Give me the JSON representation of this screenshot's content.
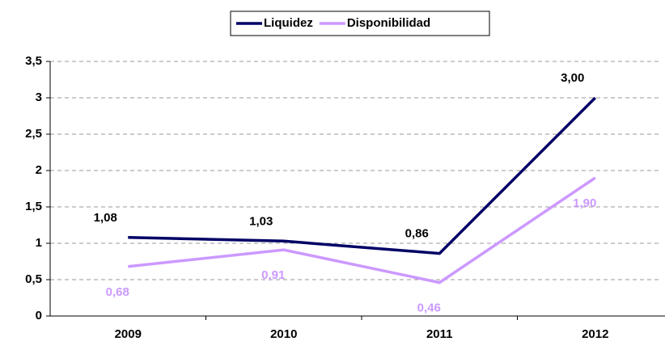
{
  "chart_data": {
    "type": "line",
    "categories": [
      "2009",
      "2010",
      "2011",
      "2012"
    ],
    "series": [
      {
        "name": "Liquidez",
        "color": "#000066",
        "values": [
          1.08,
          1.03,
          0.86,
          3.0
        ],
        "value_labels": [
          "1,08",
          "1,03",
          "0,86",
          "3,00"
        ]
      },
      {
        "name": "Disponibilidad",
        "color": "#cc99ff",
        "values": [
          0.68,
          0.91,
          0.46,
          1.9
        ],
        "value_labels": [
          "0,68",
          "0,91",
          "0,46",
          "1,90"
        ]
      }
    ],
    "ylim": [
      0,
      3.5
    ],
    "yticks": [
      0,
      {
        "value": 0.5,
        "label": "0,5"
      },
      1,
      {
        "value": 1.5,
        "label": "1,5"
      },
      2,
      {
        "value": 2.5,
        "label": "2,5"
      },
      3,
      {
        "value": 3.5,
        "label": "3,5"
      }
    ],
    "grid": true,
    "legend": "top"
  }
}
